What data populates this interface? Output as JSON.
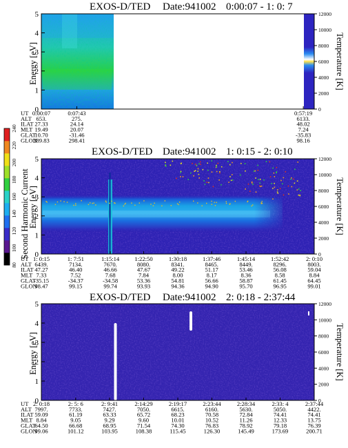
{
  "chart_data": [
    {
      "type": "heatmap",
      "title": "EXOS-D/TED",
      "date": "Date:941002",
      "time_range": "0:00:07 - 1: 0: 7",
      "ylabel": "Energy [eV]",
      "ylim": [
        0,
        5
      ],
      "yticks": [
        "0",
        "1",
        "2",
        "3",
        "4",
        "5"
      ],
      "right_axis": {
        "label": "Temperature [K]",
        "ylim": [
          0,
          12000
        ],
        "ticks": [
          "0",
          "2000",
          "4000",
          "6000",
          "8000",
          "10000",
          "12000"
        ]
      },
      "ephemeris": {
        "labels": [
          "UT",
          "ALT",
          "ILAT",
          "MLT",
          "GLAT",
          "GLON"
        ],
        "columns": [
          {
            "frac": 0.0,
            "values": [
              "0:00:07",
              "653.",
              "27.33",
              "19.49",
              "10.70",
              "289.83"
            ]
          },
          {
            "frac": 0.13,
            "values": [
              "0:07:43",
              "275.",
              "24.14",
              "20.07",
              "-31.46",
              "298.41"
            ]
          },
          {
            "frac": 0.96,
            "values": [
              "0:57:19",
              "6133.",
              "48.02",
              "7.24",
              "-35.83",
              "98.16"
            ]
          }
        ]
      },
      "data_coverage": [
        [
          0.0,
          0.265
        ]
      ],
      "spectrum": "broad high-intensity (green/cyan) band 0-5 eV during data coverage, peak near 1-2 eV",
      "temperature_bar": "yellow/white band around 6000-8000 K"
    },
    {
      "type": "heatmap",
      "title": "EXOS-D/TED",
      "date": "Date:941002",
      "time_range": "1: 0:15 - 2: 0:10",
      "ylabel": "Energy [eV]",
      "ylim": [
        0,
        5
      ],
      "yticks": [
        "0",
        "1",
        "2",
        "3",
        "4",
        "5"
      ],
      "right_axis": {
        "label": "Temperature [K]",
        "ylim": [
          0,
          12000
        ],
        "ticks": [
          "0",
          "2000",
          "4000",
          "6000",
          "8000",
          "10000",
          "12000"
        ]
      },
      "colorbar": {
        "label": "Second Harmonic Current",
        "range": [
          80,
          240
        ],
        "ticks": [
          "80",
          "100",
          "120",
          "140",
          "160",
          "180",
          "200",
          "220",
          "240"
        ]
      },
      "ephemeris": {
        "labels": [
          "UT",
          "ALT",
          "ILAT",
          "MLT",
          "GLAT",
          "GLON"
        ],
        "columns": [
          {
            "frac": 0.0,
            "values": [
              "1: 0:15",
              "6439.",
              "47.27",
              "7.33",
              "-35.15",
              "98.47"
            ]
          },
          {
            "frac": 0.1258,
            "values": [
              "1: 7:51",
              "7134.",
              "46.40",
              "7.52",
              "-34.37",
              "99.15"
            ]
          },
          {
            "frac": 0.2528,
            "values": [
              "1:15:14",
              "7670.",
              "46.66",
              "7.68",
              "-34.58",
              "99.74"
            ]
          },
          {
            "frac": 0.375,
            "values": [
              "1:22:50",
              "8080.",
              "47.67",
              "7.84",
              "53.36",
              "93.93"
            ]
          },
          {
            "frac": 0.5,
            "values": [
              "1:30:18",
              "8341.",
              "49.22",
              "8.00",
              "54.81",
              "94.36"
            ]
          },
          {
            "frac": 0.6242,
            "values": [
              "1:37:46",
              "8465.",
              "51.17",
              "8.17",
              "56.66",
              "94.90"
            ]
          },
          {
            "frac": 0.75,
            "values": [
              "1:45:14",
              "8449.",
              "53.46",
              "8.36",
              "58.87",
              "95.70"
            ]
          },
          {
            "frac": 0.8742,
            "values": [
              "1:52:42",
              "8296.",
              "56.08",
              "8.58",
              "61.45",
              "96.95"
            ]
          },
          {
            "frac": 1.0,
            "values": [
              "2: 0:10",
              "8003.",
              "59.04",
              "8.84",
              "64.45",
              "99.01"
            ]
          }
        ]
      },
      "data_coverage": [
        [
          0.0,
          1.0
        ]
      ],
      "spectrum": "intense band centered ~2 eV (1.3-2.8 eV) fading after ~85% of interval; vertical spike near 1:15",
      "temperature_bar": "none"
    },
    {
      "type": "heatmap",
      "title": "EXOS-D/TED",
      "date": "Date:941002",
      "time_range": "2: 0:18 - 2:37:44",
      "ylabel": "Energy [eV]",
      "ylim": [
        0,
        5
      ],
      "yticks": [
        "0",
        "1",
        "2",
        "3",
        "4",
        "5"
      ],
      "right_axis": {
        "label": "Temperature [K]",
        "ylim": [
          0,
          12000
        ],
        "ticks": [
          "0",
          "2000",
          "4000",
          "6000",
          "8000",
          "10000",
          "12000"
        ]
      },
      "ephemeris": {
        "labels": [
          "UT",
          "ALT",
          "ILAT",
          "MLT",
          "GLAT",
          "GLON"
        ],
        "columns": [
          {
            "frac": 0.0,
            "values": [
              "2: 0:18",
              "7997.",
              "59.09",
              "8.84",
              "64.50",
              "99.06"
            ]
          },
          {
            "frac": 0.1257,
            "values": [
              "2: 5: 6",
              "7733.",
              "61.19",
              "9.05",
              "66.68",
              "101.12"
            ]
          },
          {
            "frac": 0.25,
            "values": [
              "2: 9:41",
              "7427.",
              "63.33",
              "9.29",
              "68.95",
              "103.95"
            ]
          },
          {
            "frac": 0.375,
            "values": [
              "2:14:29",
              "7050.",
              "65.72",
              "9.60",
              "71.54",
              "108.38"
            ]
          },
          {
            "frac": 0.5,
            "values": [
              "2:19:17",
              "6615.",
              "68.23",
              "10.01",
              "74.30",
              "115.45"
            ]
          },
          {
            "frac": 0.625,
            "values": [
              "2:23:44",
              "6160.",
              "70.58",
              "10.52",
              "76.83",
              "126.30"
            ]
          },
          {
            "frac": 0.75,
            "values": [
              "2:28:34",
              "5630.",
              "72.84",
              "11.26",
              "78.92",
              "145.49"
            ]
          },
          {
            "frac": 0.875,
            "values": [
              "2:33: 4",
              "5050.",
              "74.41",
              "12.33",
              "79.18",
              "173.69"
            ]
          },
          {
            "frac": 1.0,
            "values": [
              "2:37:44",
              "4422.",
              "74.41",
              "13.75",
              "76.39",
              "200.71"
            ]
          }
        ]
      },
      "data_coverage": [
        [
          0.0,
          1.0
        ]
      ],
      "spectrum": "low background (dark blue/purple) across all energies",
      "temperature_bar": "none"
    }
  ]
}
